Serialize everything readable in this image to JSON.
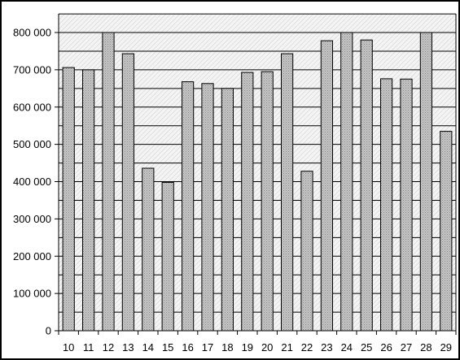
{
  "chart_data": {
    "type": "bar",
    "categories": [
      "10",
      "11",
      "12",
      "13",
      "14",
      "15",
      "16",
      "17",
      "18",
      "19",
      "20",
      "21",
      "22",
      "23",
      "24",
      "25",
      "26",
      "27",
      "28",
      "29"
    ],
    "values": [
      706000,
      700000,
      800000,
      743000,
      436000,
      398000,
      668000,
      663000,
      650000,
      693000,
      695000,
      743000,
      428000,
      778000,
      800000,
      780000,
      676000,
      675000,
      800000,
      535000
    ],
    "title": "",
    "xlabel": "",
    "ylabel": "",
    "ylim": [
      0,
      800000
    ],
    "yticks": [
      0,
      100000,
      200000,
      300000,
      400000,
      500000,
      600000,
      700000,
      800000
    ],
    "ytick_labels": [
      "0",
      "100 000",
      "200 000",
      "300 000",
      "400 000",
      "500 000",
      "600 000",
      "700 000",
      "800 000"
    ],
    "grid": true,
    "legend": "none",
    "colors": {
      "bar_fill": "#b4b4b4",
      "bar_stroke": "#000000",
      "plot_background": "#ececec",
      "gridline": "#000000",
      "border": "#000000"
    }
  }
}
